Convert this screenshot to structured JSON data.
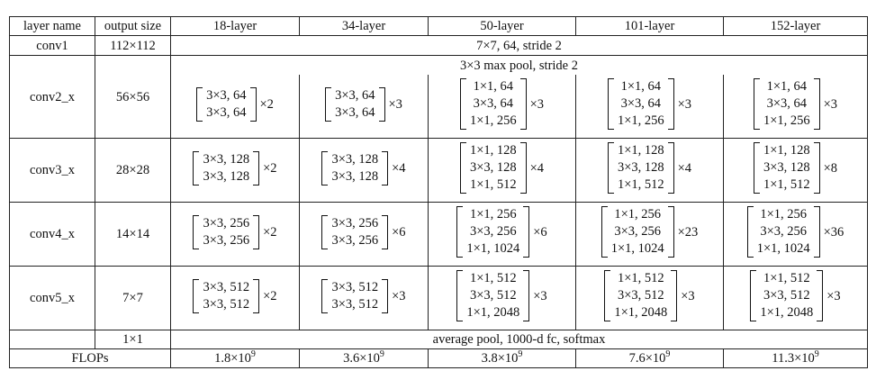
{
  "headers": [
    "layer name",
    "output size",
    "18-layer",
    "34-layer",
    "50-layer",
    "101-layer",
    "152-layer"
  ],
  "conv1": {
    "name": "conv1",
    "size": "112×112",
    "spec": "7×7, 64, stride 2"
  },
  "pool": {
    "spec": "3×3 max pool, stride 2"
  },
  "stages": [
    {
      "name": "conv2_x",
      "size": "56×56",
      "cells": [
        {
          "lines": [
            "3×3, 64",
            "3×3, 64"
          ],
          "mult": "×2"
        },
        {
          "lines": [
            "3×3, 64",
            "3×3, 64"
          ],
          "mult": "×3"
        },
        {
          "lines": [
            "1×1, 64",
            "3×3, 64",
            "1×1, 256"
          ],
          "mult": "×3"
        },
        {
          "lines": [
            "1×1, 64",
            "3×3, 64",
            "1×1, 256"
          ],
          "mult": "×3"
        },
        {
          "lines": [
            "1×1, 64",
            "3×3, 64",
            "1×1, 256"
          ],
          "mult": "×3"
        }
      ]
    },
    {
      "name": "conv3_x",
      "size": "28×28",
      "cells": [
        {
          "lines": [
            "3×3, 128",
            "3×3, 128"
          ],
          "mult": "×2"
        },
        {
          "lines": [
            "3×3, 128",
            "3×3, 128"
          ],
          "mult": "×4"
        },
        {
          "lines": [
            "1×1, 128",
            "3×3, 128",
            "1×1, 512"
          ],
          "mult": "×4"
        },
        {
          "lines": [
            "1×1, 128",
            "3×3, 128",
            "1×1, 512"
          ],
          "mult": "×4"
        },
        {
          "lines": [
            "1×1, 128",
            "3×3, 128",
            "1×1, 512"
          ],
          "mult": "×8"
        }
      ]
    },
    {
      "name": "conv4_x",
      "size": "14×14",
      "cells": [
        {
          "lines": [
            "3×3, 256",
            "3×3, 256"
          ],
          "mult": "×2"
        },
        {
          "lines": [
            "3×3, 256",
            "3×3, 256"
          ],
          "mult": "×6"
        },
        {
          "lines": [
            "1×1, 256",
            "3×3, 256",
            "1×1, 1024"
          ],
          "mult": "×6"
        },
        {
          "lines": [
            "1×1, 256",
            "3×3, 256",
            "1×1, 1024"
          ],
          "mult": "×23"
        },
        {
          "lines": [
            "1×1, 256",
            "3×3, 256",
            "1×1, 1024"
          ],
          "mult": "×36"
        }
      ]
    },
    {
      "name": "conv5_x",
      "size": "7×7",
      "cells": [
        {
          "lines": [
            "3×3, 512",
            "3×3, 512"
          ],
          "mult": "×2"
        },
        {
          "lines": [
            "3×3, 512",
            "3×3, 512"
          ],
          "mult": "×3"
        },
        {
          "lines": [
            "1×1, 512",
            "3×3, 512",
            "1×1, 2048"
          ],
          "mult": "×3"
        },
        {
          "lines": [
            "1×1, 512",
            "3×3, 512",
            "1×1, 2048"
          ],
          "mult": "×3"
        },
        {
          "lines": [
            "1×1, 512",
            "3×3, 512",
            "1×1, 2048"
          ],
          "mult": "×3"
        }
      ]
    }
  ],
  "final": {
    "size": "1×1",
    "spec": "average pool, 1000-d fc, softmax"
  },
  "flops": {
    "label": "FLOPs",
    "values": [
      {
        "mantissa": "1.8×10",
        "exp": "9"
      },
      {
        "mantissa": "3.6×10",
        "exp": "9"
      },
      {
        "mantissa": "3.8×10",
        "exp": "9"
      },
      {
        "mantissa": "7.6×10",
        "exp": "9"
      },
      {
        "mantissa": "11.3×10",
        "exp": "9"
      }
    ]
  }
}
